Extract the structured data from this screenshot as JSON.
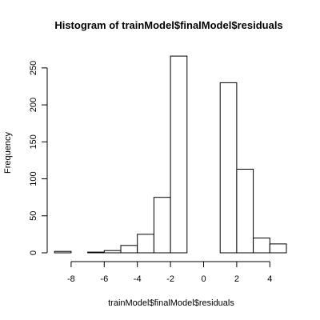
{
  "chart_data": {
    "type": "bar",
    "title": "Histogram of trainModel$finalModel$residuals",
    "xlabel": "trainModel$finalModel$residuals",
    "ylabel": "Frequency",
    "xlim": [
      -9,
      5
    ],
    "ylim": [
      0,
      270
    ],
    "bin_edges": [
      -9,
      -8,
      -7,
      -6,
      -5,
      -4,
      -3,
      -2,
      -1,
      0,
      1,
      2,
      3,
      4,
      5
    ],
    "values": [
      2,
      0,
      1,
      3,
      10,
      25,
      75,
      266,
      0,
      0,
      230,
      113,
      20,
      12
    ],
    "x_ticks": [
      -8,
      -6,
      -4,
      -2,
      0,
      2,
      4
    ],
    "y_ticks": [
      0,
      50,
      100,
      150,
      200,
      250
    ],
    "grid": false,
    "bar_fill": "#ffffff",
    "bar_stroke": "#000000"
  }
}
